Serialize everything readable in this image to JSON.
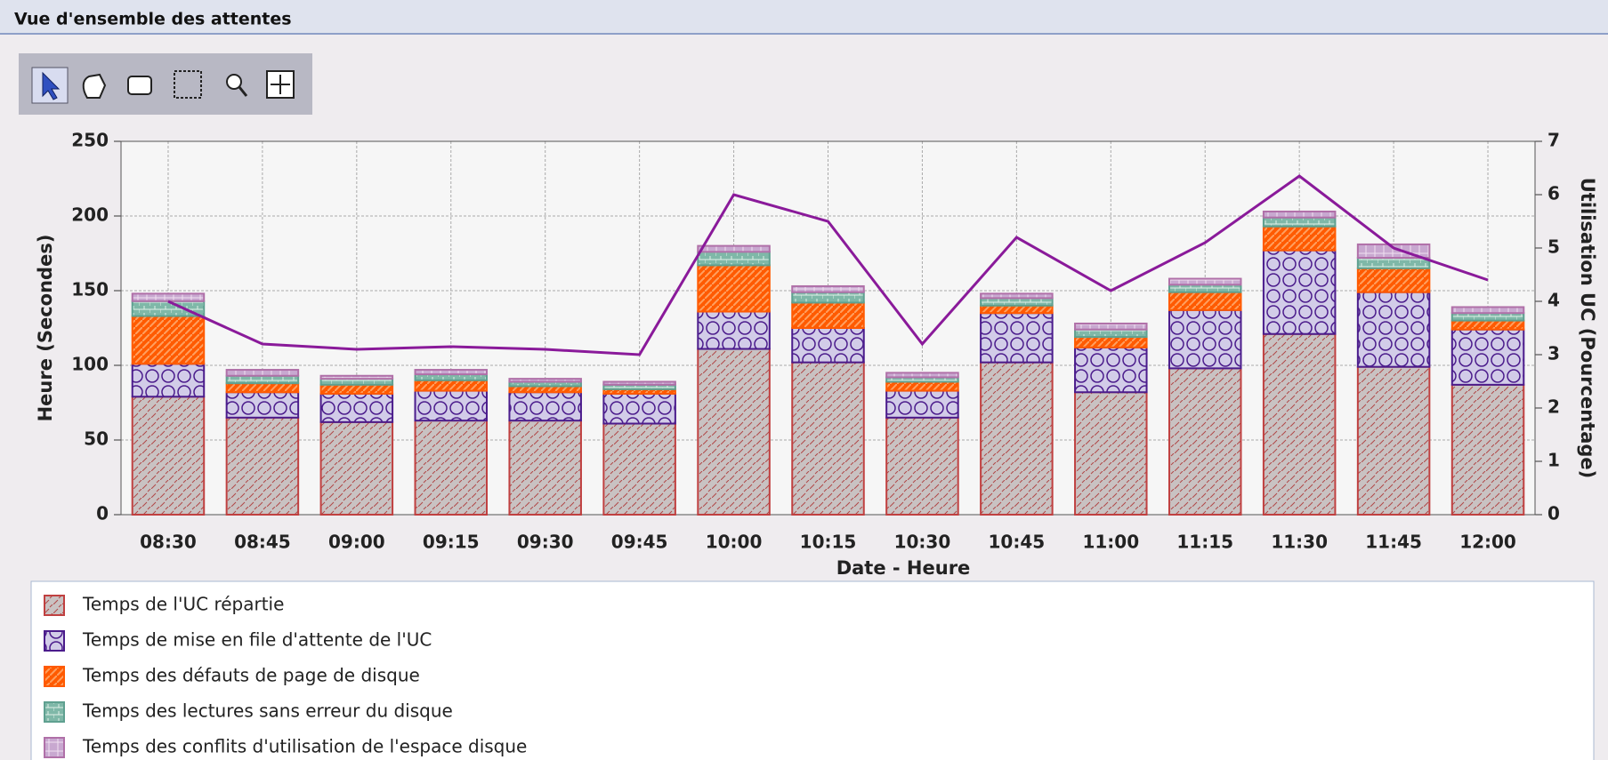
{
  "chart_data": {
    "type": "bar",
    "stacked": true,
    "title": "Vue d'ensemble des attentes",
    "x_label": "Date - Heure",
    "y_label": "Heure  (Secondes)",
    "y2_label": "Utilisation UC (Pourcentage)",
    "categories": [
      "08:30",
      "08:45",
      "09:00",
      "09:15",
      "09:30",
      "09:45",
      "10:00",
      "10:15",
      "10:30",
      "10:45",
      "11:00",
      "11:15",
      "11:30",
      "11:45",
      "12:00"
    ],
    "series": [
      {
        "name": "Temps de l'UC répartie",
        "color": "#c04040",
        "values": [
          79,
          65,
          62,
          63,
          63,
          61,
          111,
          102,
          65,
          102,
          82,
          98,
          121,
          99,
          87
        ]
      },
      {
        "name": "Temps de mise en file d'attente de l'UC",
        "color": "#4b1c8c",
        "values": [
          22,
          17,
          19,
          20,
          19,
          20,
          25,
          23,
          18,
          33,
          30,
          39,
          56,
          50,
          37
        ]
      },
      {
        "name": "Temps des défauts de page de disque",
        "color": "#ff5a00",
        "values": [
          32,
          6,
          6,
          7,
          4,
          3,
          31,
          17,
          6,
          5,
          7,
          12,
          16,
          16,
          6
        ]
      },
      {
        "name": "Temps des lectures sans erreur du disque",
        "color": "#5fa090",
        "values": [
          10,
          5,
          4,
          4,
          3,
          3,
          9,
          7,
          3,
          5,
          5,
          5,
          6,
          7,
          5
        ]
      },
      {
        "name": "Temps des conflits d'utilisation de l'espace disque",
        "color": "#b070a8",
        "values": [
          5,
          4,
          2,
          3,
          2,
          2,
          4,
          4,
          3,
          3,
          4,
          4,
          4,
          9,
          4
        ]
      },
      {
        "type": "line",
        "axis": "y2",
        "color": "#8a1a9a",
        "values": [
          4.0,
          3.2,
          3.1,
          3.15,
          3.1,
          3.0,
          6.0,
          5.5,
          3.2,
          5.2,
          4.2,
          5.1,
          6.35,
          5.0,
          4.4
        ]
      }
    ],
    "ylim": [
      0,
      250
    ],
    "yticks": [
      0,
      50,
      100,
      150,
      200,
      250
    ],
    "y2lim": [
      0,
      7
    ],
    "y2ticks": [
      0,
      1,
      2,
      3,
      4,
      5,
      6,
      7
    ],
    "grid": true
  }
}
